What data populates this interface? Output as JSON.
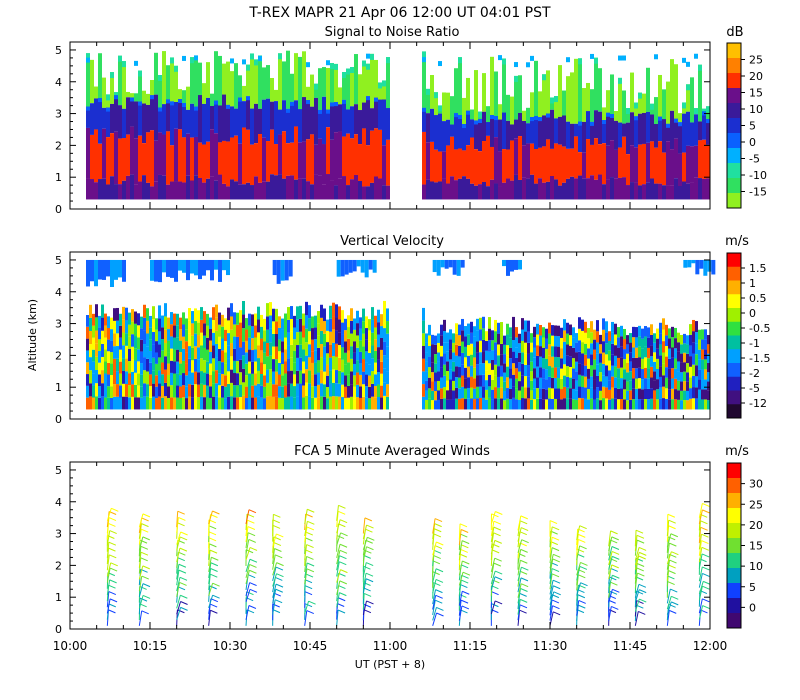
{
  "header": {
    "line1": "T-REX   MAPR 21 Apr 06   12:00 UT   04:01   PST"
  },
  "chart_data": [
    {
      "id": "snr",
      "type": "heatmap",
      "title": "Signal to Noise Ratio",
      "ylabel": "",
      "ylim": [
        0,
        5
      ],
      "yticks": [
        "0",
        "1",
        "2",
        "3",
        "4",
        "5"
      ],
      "colorbar": {
        "unit": "dB",
        "labels": [
          "25",
          "20",
          "15",
          "10",
          "5",
          "0",
          "-5",
          "-10",
          "-15"
        ],
        "colors": [
          "#ffc000",
          "#ff8000",
          "#ff3000",
          "#6a0f8a",
          "#3a1a9a",
          "#1b2fd0",
          "#0a60ff",
          "#00b0ff",
          "#20e0a0",
          "#30e060",
          "#90f020"
        ]
      },
      "data_gap_ut": [
        "11:00",
        "11:06"
      ],
      "data_extent": {
        "core": {
          "layers": [
            [
              0.3,
              1.0,
              "#3a1a9a"
            ],
            [
              1.0,
              2.3,
              "#ff3000"
            ],
            [
              2.3,
              3.4,
              "#3a1a9a"
            ]
          ]
        },
        "noise_top_km": 5.0
      }
    },
    {
      "id": "velocity",
      "type": "heatmap",
      "title": "Vertical Velocity",
      "ylabel": "Altitude (km)",
      "ylim": [
        0,
        5
      ],
      "yticks": [
        "0",
        "1",
        "2",
        "3",
        "4",
        "5"
      ],
      "colorbar": {
        "unit": "m/s",
        "labels": [
          "1.5",
          "1",
          "0.5",
          "0",
          "-0.5",
          "-1",
          "-1.5",
          "-2",
          "-5",
          "-12"
        ],
        "colors": [
          "#ff0000",
          "#ff6000",
          "#ffb000",
          "#ffff00",
          "#a0f000",
          "#30e040",
          "#00c0a0",
          "#00a0ff",
          "#1060ff",
          "#2020c0",
          "#401080",
          "#200830"
        ]
      },
      "data_gap_ut": [
        "11:00",
        "11:06"
      ]
    },
    {
      "id": "winds",
      "type": "barbs",
      "title": "FCA 5 Minute Averaged Winds",
      "xlabel": "UT  (PST + 8)",
      "ylim": [
        0,
        5
      ],
      "yticks": [
        "0",
        "1",
        "2",
        "3",
        "4",
        "5"
      ],
      "xticks": [
        "10:00",
        "10:15",
        "10:30",
        "10:45",
        "11:00",
        "11:15",
        "11:30",
        "11:45",
        "12:00"
      ],
      "colorbar": {
        "unit": "m/s",
        "labels": [
          "30",
          "25",
          "20",
          "15",
          "10",
          "5",
          "0"
        ],
        "colors": [
          "#ff0000",
          "#ff6000",
          "#ffb000",
          "#ffff00",
          "#c0f000",
          "#70e030",
          "#20d080",
          "#00a0c0",
          "#1040ff",
          "#2010a0",
          "#400870"
        ]
      },
      "profiles_ut": [
        "10:07",
        "10:13",
        "10:20",
        "10:26",
        "10:33",
        "10:38",
        "10:44",
        "10:50",
        "10:55",
        "11:08",
        "11:13",
        "11:19",
        "11:24",
        "11:30",
        "11:35",
        "11:41",
        "11:46",
        "11:52",
        "11:58"
      ],
      "profile_top_km": [
        3.4,
        3.2,
        3.2,
        3.3,
        3.3,
        3.1,
        3.3,
        3.4,
        3.0,
        3.0,
        2.8,
        3.3,
        3.1,
        2.9,
        2.8,
        2.6,
        2.6,
        3.1,
        3.5
      ],
      "speeds_ms_range": [
        0,
        30
      ]
    }
  ]
}
